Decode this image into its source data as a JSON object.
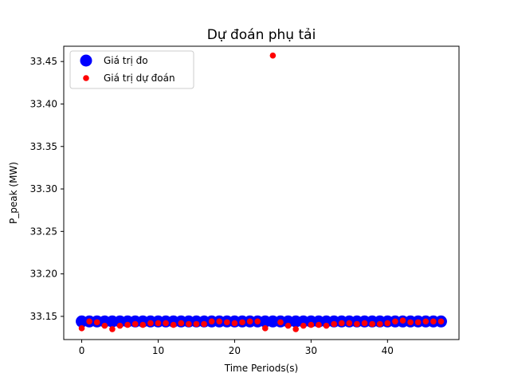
{
  "chart_data": {
    "type": "scatter",
    "title": "Dự đoán phụ tải",
    "xlabel": "Time Periods(s)",
    "ylabel": "P_peak (MW)",
    "xlim": [
      -2.35,
      49.35
    ],
    "ylim": [
      33.1227,
      33.468
    ],
    "xticks": [
      0,
      10,
      20,
      30,
      40
    ],
    "yticks": [
      33.15,
      33.2,
      33.25,
      33.3,
      33.35,
      33.4,
      33.45
    ],
    "ytick_labels": [
      "33.15",
      "33.20",
      "33.25",
      "33.30",
      "33.35",
      "33.40",
      "33.45"
    ],
    "legend_position": "upper-left",
    "grid": false,
    "series": [
      {
        "name": "Giá trị đo",
        "color": "#0000ff",
        "marker": "large-circle",
        "x": [
          0,
          1,
          2,
          3,
          4,
          5,
          6,
          7,
          8,
          9,
          10,
          11,
          12,
          13,
          14,
          15,
          16,
          17,
          18,
          19,
          20,
          21,
          22,
          23,
          24,
          25,
          26,
          27,
          28,
          29,
          30,
          31,
          32,
          33,
          34,
          35,
          36,
          37,
          38,
          39,
          40,
          41,
          42,
          43,
          44,
          45,
          46,
          47
        ],
        "y": [
          33.144,
          33.144,
          33.144,
          33.144,
          33.144,
          33.144,
          33.144,
          33.144,
          33.144,
          33.144,
          33.144,
          33.144,
          33.144,
          33.144,
          33.144,
          33.144,
          33.144,
          33.144,
          33.144,
          33.144,
          33.144,
          33.144,
          33.144,
          33.144,
          33.144,
          33.144,
          33.144,
          33.144,
          33.144,
          33.144,
          33.144,
          33.144,
          33.144,
          33.144,
          33.144,
          33.144,
          33.144,
          33.144,
          33.144,
          33.144,
          33.144,
          33.144,
          33.144,
          33.144,
          33.144,
          33.144,
          33.144,
          33.144
        ]
      },
      {
        "name": "Giá trị dự đoán",
        "color": "#ff0000",
        "marker": "small-circle",
        "x": [
          0,
          1,
          2,
          3,
          4,
          5,
          6,
          7,
          8,
          9,
          10,
          11,
          12,
          13,
          14,
          15,
          16,
          17,
          18,
          19,
          20,
          21,
          22,
          23,
          24,
          25,
          26,
          27,
          28,
          29,
          30,
          31,
          32,
          33,
          34,
          35,
          36,
          37,
          38,
          39,
          40,
          41,
          42,
          43,
          44,
          45,
          46,
          47
        ],
        "y": [
          33.136,
          33.144,
          33.143,
          33.139,
          33.135,
          33.139,
          33.14,
          33.141,
          33.14,
          33.142,
          33.142,
          33.142,
          33.14,
          33.142,
          33.141,
          33.141,
          33.141,
          33.144,
          33.144,
          33.143,
          33.142,
          33.143,
          33.144,
          33.144,
          33.136,
          33.457,
          33.143,
          33.139,
          33.135,
          33.139,
          33.14,
          33.14,
          33.139,
          33.141,
          33.142,
          33.142,
          33.141,
          33.142,
          33.141,
          33.141,
          33.142,
          33.144,
          33.145,
          33.143,
          33.143,
          33.144,
          33.144,
          33.144
        ]
      }
    ]
  }
}
